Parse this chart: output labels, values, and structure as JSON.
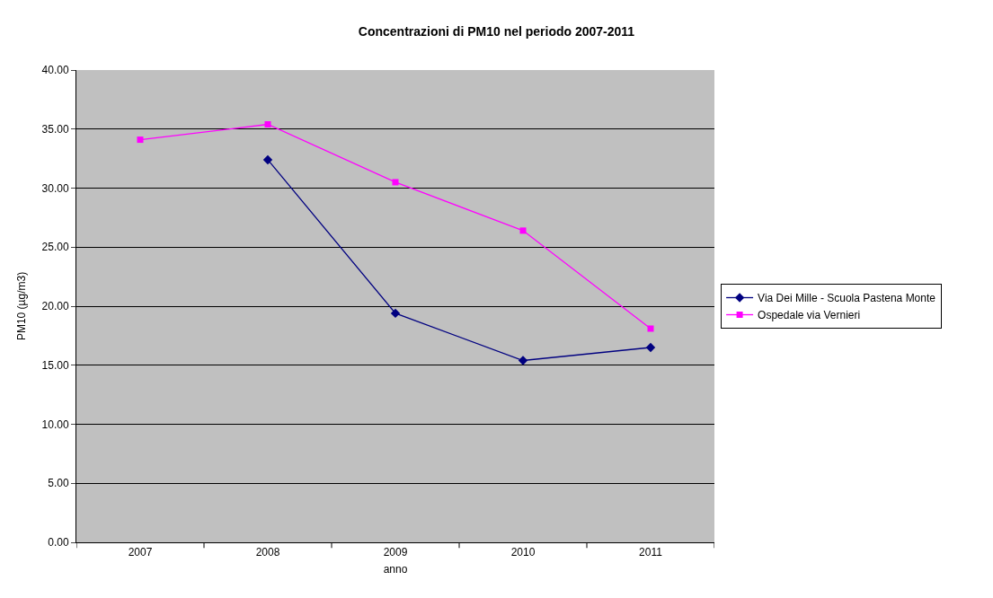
{
  "chart_data": {
    "type": "line",
    "title": "Concentrazioni di PM10 nel periodo 2007-2011",
    "xlabel": "anno",
    "ylabel": "PM10 (µg/m3)",
    "categories": [
      "2007",
      "2008",
      "2009",
      "2010",
      "2011"
    ],
    "series": [
      {
        "name": "Via Dei Mille - Scuola Pastena Monte",
        "color": "#000080",
        "marker": "diamond",
        "values": [
          null,
          32.4,
          19.4,
          15.4,
          16.5
        ]
      },
      {
        "name": "Ospedale via Vernieri",
        "color": "#ff00ff",
        "marker": "square",
        "values": [
          34.1,
          35.4,
          30.5,
          26.4,
          18.1
        ]
      }
    ],
    "ylim": [
      0,
      40
    ],
    "yticks": [
      {
        "value": 0,
        "label": "0.00"
      },
      {
        "value": 5,
        "label": "5.00"
      },
      {
        "value": 10,
        "label": "10.00"
      },
      {
        "value": 15,
        "label": "15.00"
      },
      {
        "value": 20,
        "label": "20.00"
      },
      {
        "value": 25,
        "label": "25.00"
      },
      {
        "value": 30,
        "label": "30.00"
      },
      {
        "value": 35,
        "label": "35.00"
      },
      {
        "value": 40,
        "label": "40.00"
      }
    ],
    "grid": "y",
    "legend": "right",
    "line_style": "solid"
  }
}
